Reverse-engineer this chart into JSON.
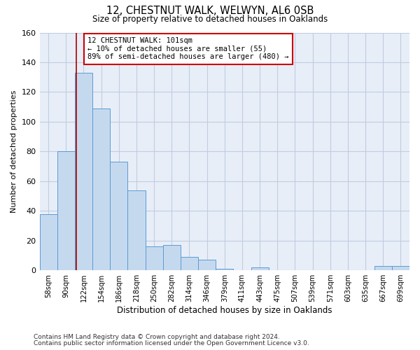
{
  "title": "12, CHESTNUT WALK, WELWYN, AL6 0SB",
  "subtitle": "Size of property relative to detached houses in Oaklands",
  "xlabel": "Distribution of detached houses by size in Oaklands",
  "ylabel": "Number of detached properties",
  "bar_labels": [
    "58sqm",
    "90sqm",
    "122sqm",
    "154sqm",
    "186sqm",
    "218sqm",
    "250sqm",
    "282sqm",
    "314sqm",
    "346sqm",
    "379sqm",
    "411sqm",
    "443sqm",
    "475sqm",
    "507sqm",
    "539sqm",
    "571sqm",
    "603sqm",
    "635sqm",
    "667sqm",
    "699sqm"
  ],
  "bar_values": [
    38,
    80,
    133,
    109,
    73,
    54,
    16,
    17,
    9,
    7,
    1,
    0,
    2,
    0,
    0,
    0,
    0,
    0,
    0,
    3,
    3
  ],
  "bar_color": "#c5d9ee",
  "bar_edge_color": "#5b9bd5",
  "ylim": [
    0,
    160
  ],
  "yticks": [
    0,
    20,
    40,
    60,
    80,
    100,
    120,
    140,
    160
  ],
  "vline_x": 1.57,
  "vline_color": "#aa0000",
  "annotation_line1": "12 CHESTNUT WALK: 101sqm",
  "annotation_line2": "← 10% of detached houses are smaller (55)",
  "annotation_line3": "89% of semi-detached houses are larger (480) →",
  "annotation_box_color": "white",
  "annotation_box_edge": "#cc0000",
  "footer_line1": "Contains HM Land Registry data © Crown copyright and database right 2024.",
  "footer_line2": "Contains public sector information licensed under the Open Government Licence v3.0.",
  "plot_bg_color": "#e8eef8",
  "fig_bg_color": "#ffffff",
  "grid_color": "#c0cce0"
}
